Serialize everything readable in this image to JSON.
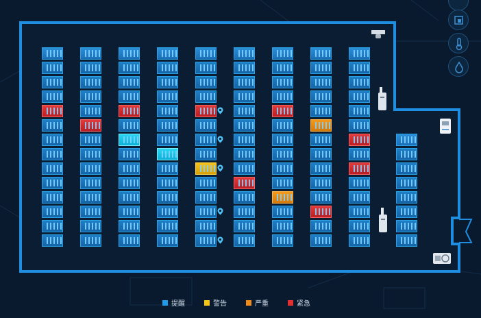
{
  "legend": {
    "items": [
      {
        "label": "提醒",
        "color": "#1e9be8"
      },
      {
        "label": "警告",
        "color": "#f5c518"
      },
      {
        "label": "严重",
        "color": "#f08b1a"
      },
      {
        "label": "紧急",
        "color": "#e03131"
      }
    ]
  },
  "sidebar": {
    "buttons": [
      {
        "icon": "circle-icon"
      },
      {
        "icon": "resize-icon"
      },
      {
        "icon": "thermometer-icon"
      },
      {
        "icon": "water-drop-icon"
      }
    ]
  },
  "status_colors": {
    "normal": "#1e80cc",
    "cyan": "#1ec8ec",
    "yellow": "#f5c518",
    "orange": "#f08b1a",
    "red": "#e03131"
  },
  "rack_columns": [
    {
      "rows": 14,
      "alerts": {
        "4": "red"
      }
    },
    {
      "rows": 14,
      "alerts": {
        "5": "red"
      }
    },
    {
      "rows": 14,
      "alerts": {
        "4": "red",
        "6": "cyan"
      }
    },
    {
      "rows": 14,
      "alerts": {
        "7": "cyan"
      }
    },
    {
      "rows": 14,
      "alerts": {
        "4": "red",
        "8": "yellow"
      }
    },
    {
      "rows": 14,
      "alerts": {
        "9": "red"
      }
    },
    {
      "rows": 14,
      "alerts": {
        "4": "red",
        "10": "orange"
      }
    },
    {
      "rows": 14,
      "alerts": {
        "5": "orange",
        "11": "red"
      }
    },
    {
      "rows": 14,
      "alerts": {
        "6": "red",
        "8": "red"
      }
    },
    {
      "rows": 8,
      "alerts": {}
    }
  ],
  "pins_rows": [
    4,
    6,
    8,
    11,
    13
  ]
}
